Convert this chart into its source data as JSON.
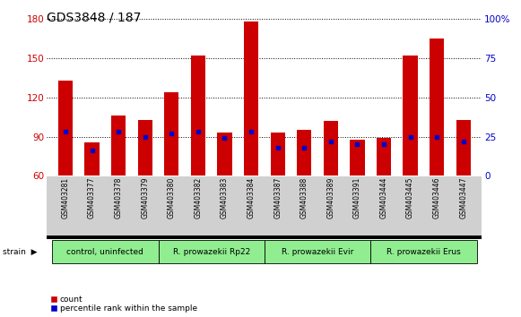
{
  "title": "GDS3848 / 187",
  "samples": [
    "GSM403281",
    "GSM403377",
    "GSM403378",
    "GSM403379",
    "GSM403380",
    "GSM403382",
    "GSM403383",
    "GSM403384",
    "GSM403387",
    "GSM403388",
    "GSM403389",
    "GSM403391",
    "GSM403444",
    "GSM403445",
    "GSM403446",
    "GSM403447"
  ],
  "counts": [
    133,
    86,
    106,
    103,
    124,
    152,
    93,
    178,
    93,
    95,
    102,
    88,
    89,
    152,
    165,
    103
  ],
  "percentiles": [
    28,
    16,
    28,
    25,
    27,
    28,
    24,
    28,
    18,
    18,
    22,
    20,
    20,
    25,
    25,
    22
  ],
  "groups": [
    {
      "label": "control, uninfected",
      "start": 0,
      "end": 3
    },
    {
      "label": "R. prowazekii Rp22",
      "start": 4,
      "end": 7
    },
    {
      "label": "R. prowazekii Evir",
      "start": 8,
      "end": 11
    },
    {
      "label": "R. prowazekii Erus",
      "start": 12,
      "end": 15
    }
  ],
  "group_color": "#90ee90",
  "ylim_left": [
    60,
    180
  ],
  "ylim_right": [
    0,
    100
  ],
  "yticks_left": [
    60,
    90,
    120,
    150,
    180
  ],
  "yticks_right": [
    0,
    25,
    50,
    75,
    100
  ],
  "bar_color": "#cc0000",
  "dot_color": "#0000cc",
  "plot_bg": "#ffffff",
  "xtick_bg": "#d0d0d0",
  "title_fontsize": 10,
  "bar_width": 0.55
}
